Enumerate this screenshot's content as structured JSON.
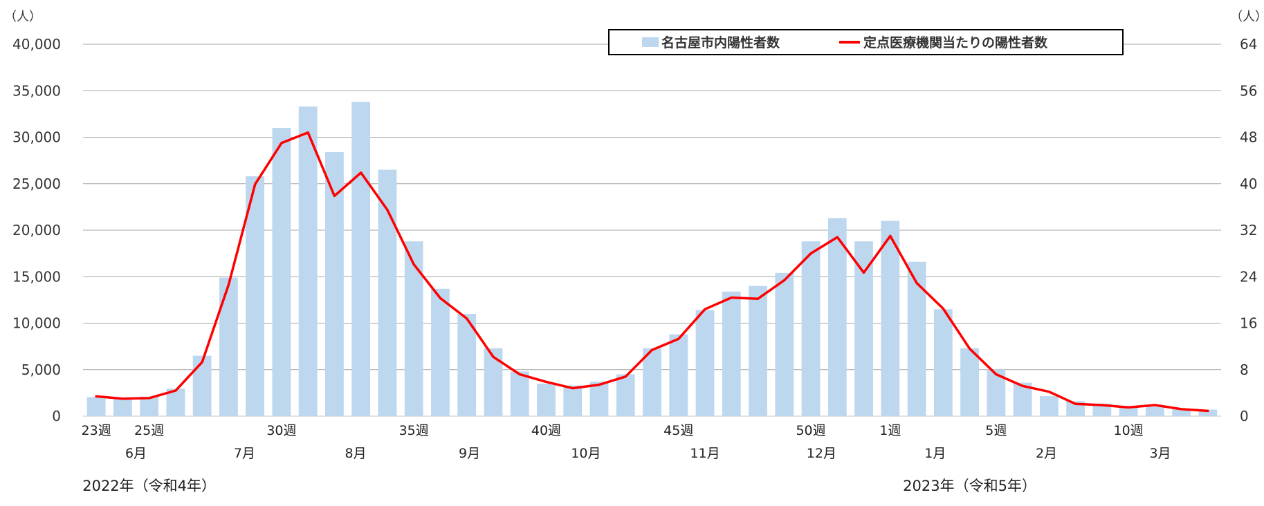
{
  "chart_data": {
    "type": "bar+line",
    "left_axis": {
      "unit": "（人）",
      "ylim": [
        0,
        40000
      ],
      "ticks": [
        0,
        5000,
        10000,
        15000,
        20000,
        25000,
        30000,
        35000,
        40000
      ],
      "tick_labels": [
        "0",
        "5,000",
        "10,000",
        "15,000",
        "20,000",
        "25,000",
        "30,000",
        "35,000",
        "40,000"
      ]
    },
    "right_axis": {
      "unit": "（人）",
      "ylim": [
        0,
        64
      ],
      "tick_labels": [
        "0",
        "8",
        "16",
        "24",
        "32",
        "40",
        "48",
        "56",
        "64"
      ]
    },
    "grid": true,
    "legend_position": "top-right",
    "series": [
      {
        "name": "名古屋市内陽性者数",
        "type": "bar",
        "color": "#bdd7ee",
        "axis": "left",
        "values": [
          2050,
          2000,
          2100,
          2950,
          6500,
          14900,
          25800,
          31000,
          33300,
          28400,
          33800,
          26500,
          18800,
          13700,
          11000,
          7300,
          4800,
          3500,
          3300,
          3700,
          4500,
          7300,
          8800,
          11400,
          13400,
          14000,
          15400,
          18800,
          21300,
          18800,
          21000,
          16600,
          11500,
          7300,
          5000,
          3600,
          2150,
          1600,
          1350,
          1100,
          1000,
          800,
          700
        ]
      },
      {
        "name": "定点医療機関当たりの陽性者数",
        "type": "line",
        "color": "#ff0000",
        "axis": "right",
        "values": [
          3.4,
          3.0,
          3.1,
          4.4,
          9.3,
          22.6,
          39.9,
          47.0,
          48.8,
          37.9,
          41.9,
          35.5,
          26.1,
          20.3,
          16.8,
          10.2,
          7.2,
          5.9,
          4.8,
          5.4,
          6.8,
          11.4,
          13.3,
          18.4,
          20.4,
          20.2,
          23.4,
          28.0,
          30.8,
          24.7,
          31.0,
          22.9,
          18.5,
          11.6,
          7.2,
          5.2,
          4.2,
          2.1,
          1.9,
          1.5,
          1.9,
          1.2,
          0.9
        ]
      }
    ],
    "x_axis": {
      "week_labels": [
        {
          "index": 0,
          "label": "23週"
        },
        {
          "index": 2,
          "label": "25週"
        },
        {
          "index": 7,
          "label": "30週"
        },
        {
          "index": 12,
          "label": "35週"
        },
        {
          "index": 17,
          "label": "40週"
        },
        {
          "index": 22,
          "label": "45週"
        },
        {
          "index": 27,
          "label": "50週"
        },
        {
          "index": 30,
          "label": "1週"
        },
        {
          "index": 34,
          "label": "5週"
        },
        {
          "index": 39,
          "label": "10週"
        }
      ],
      "month_labels": [
        {
          "index": 1.5,
          "label": "6月"
        },
        {
          "index": 5.6,
          "label": "7月"
        },
        {
          "index": 9.8,
          "label": "8月"
        },
        {
          "index": 14.1,
          "label": "9月"
        },
        {
          "index": 18.5,
          "label": "10月"
        },
        {
          "index": 23.0,
          "label": "11月"
        },
        {
          "index": 27.4,
          "label": "12月"
        },
        {
          "index": 31.7,
          "label": "1月"
        },
        {
          "index": 35.9,
          "label": "2月"
        },
        {
          "index": 40.2,
          "label": "3月"
        }
      ],
      "year_labels": [
        {
          "index": 2.0,
          "label": "2022年（令和4年）"
        },
        {
          "index": 33.0,
          "label": "2023年（令和5年）"
        }
      ]
    }
  }
}
